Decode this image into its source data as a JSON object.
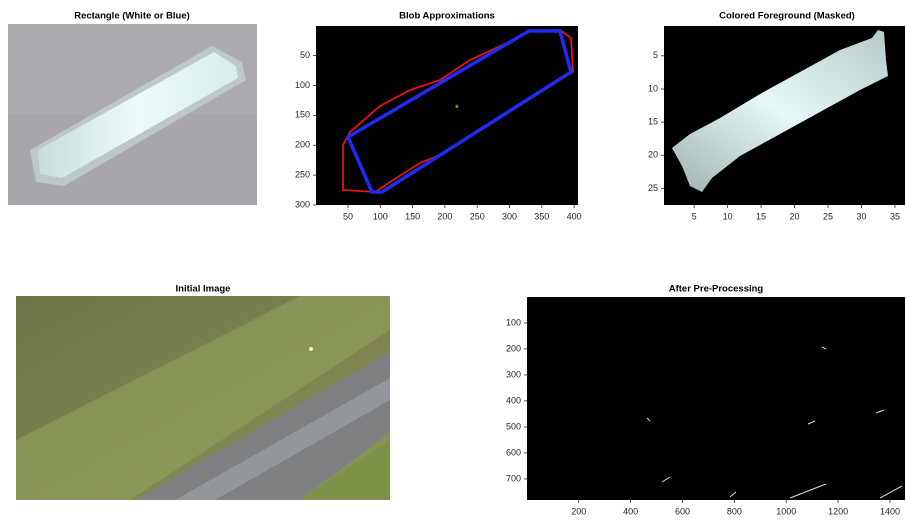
{
  "panels": [
    {
      "title": "Rectangle (White or Blue)"
    },
    {
      "title": "Blob Approximations",
      "xlim": [
        0.5,
        406
      ],
      "ylim": [
        0.5,
        300
      ],
      "xticks": [
        50,
        100,
        150,
        200,
        250,
        300,
        350,
        400
      ],
      "yticks": [
        50,
        100,
        150,
        200,
        250,
        300
      ]
    },
    {
      "title": "Colored Foreground (Masked)",
      "xlim": [
        0.5,
        36.5
      ],
      "ylim": [
        0.5,
        27.5
      ],
      "xticks": [
        5,
        10,
        15,
        20,
        25,
        30,
        35
      ],
      "yticks": [
        5,
        10,
        15,
        20,
        25
      ]
    },
    {
      "title": "Initial Image"
    },
    {
      "title": "After Pre-Processing",
      "xlim": [
        0.5,
        1458
      ],
      "ylim": [
        0.5,
        781
      ],
      "xticks": [
        200,
        400,
        600,
        800,
        1000,
        1200,
        1400
      ],
      "yticks": [
        100,
        200,
        300,
        400,
        500,
        600,
        700
      ]
    }
  ]
}
